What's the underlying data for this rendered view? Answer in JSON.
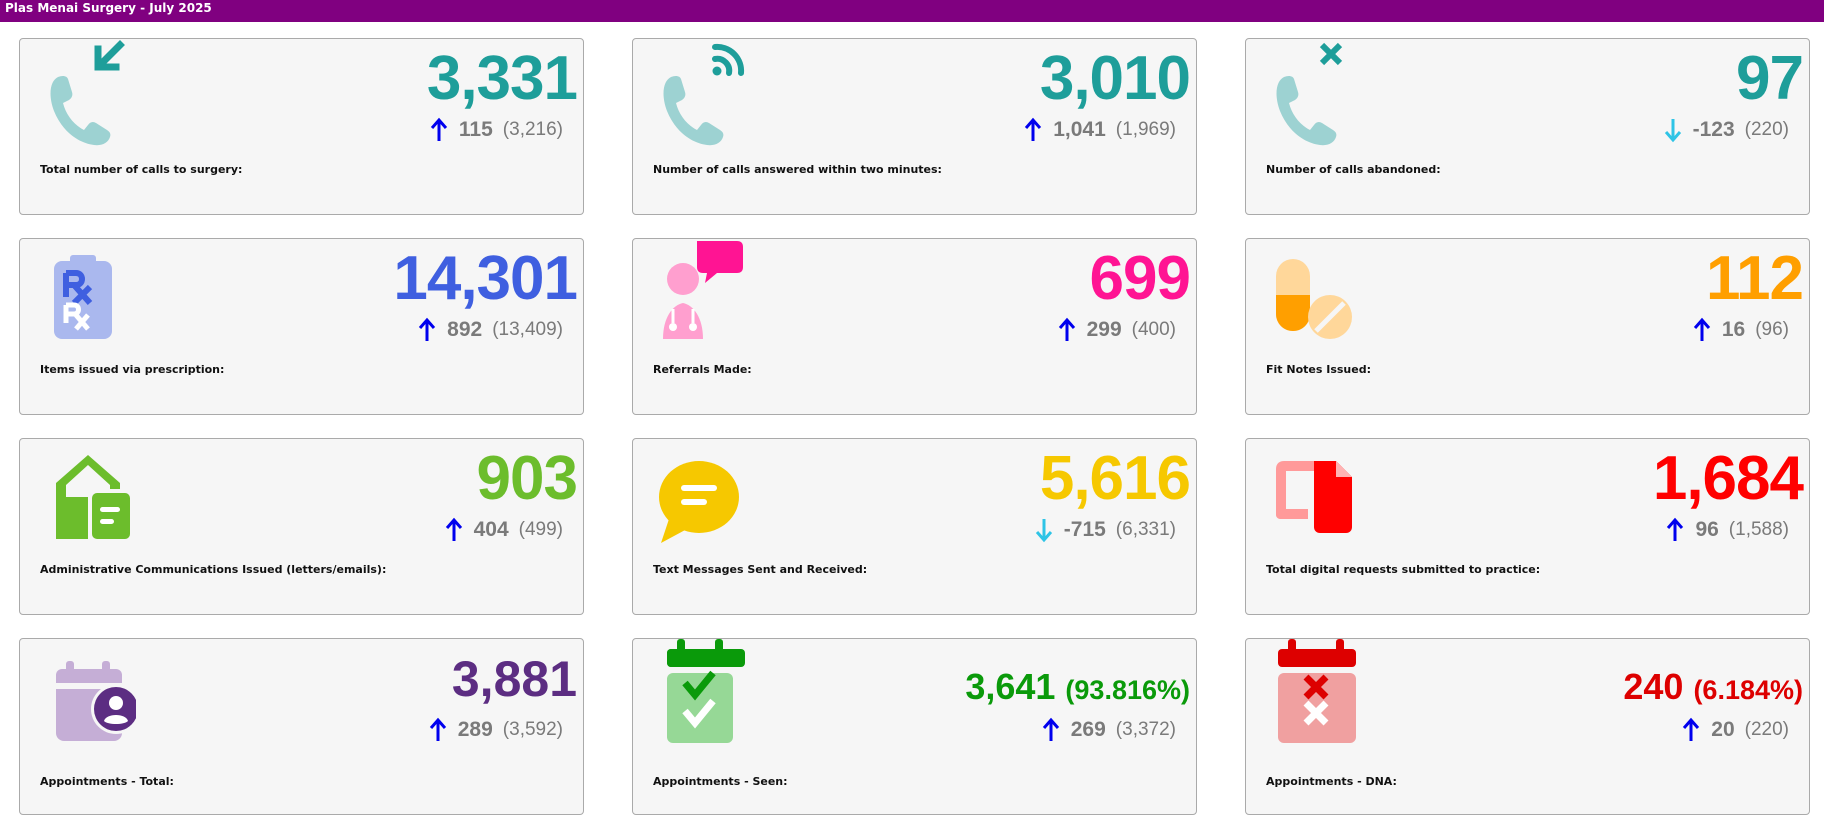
{
  "window": {
    "title": "Plas Menai Surgery - July 2025"
  },
  "colors": {
    "up_arrow": "#0000ee",
    "down_arrow": "#2ec4e6",
    "change_text": "#7a7a7a",
    "title_bar": "#800080"
  },
  "cards": [
    {
      "label": "Total number of calls to surgery:",
      "value": "3,331",
      "change": "115",
      "previous": "(3,216)",
      "direction": "up",
      "color": "#1e9e9a",
      "icon": "incoming-call-icon"
    },
    {
      "label": "Number of calls answered within two minutes:",
      "value": "3,010",
      "change": "1,041",
      "previous": "(1,969)",
      "direction": "up",
      "color": "#1e9e9a",
      "icon": "call-answered-icon"
    },
    {
      "label": "Number of calls abandoned:",
      "value": "97",
      "change": "-123",
      "previous": "(220)",
      "direction": "down",
      "color": "#1e9e9a",
      "icon": "call-abandoned-icon"
    },
    {
      "label": "Items issued via prescription:",
      "value": "14,301",
      "change": "892",
      "previous": "(13,409)",
      "direction": "up",
      "color": "#3f5fe0",
      "icon": "prescription-icon"
    },
    {
      "label": "Referrals Made:",
      "value": "699",
      "change": "299",
      "previous": "(400)",
      "direction": "up",
      "color": "#ff1493",
      "icon": "doctor-referral-icon"
    },
    {
      "label": "Fit Notes Issued:",
      "value": "112",
      "change": "16",
      "previous": "(96)",
      "direction": "up",
      "color": "#ff9f00",
      "icon": "pills-icon"
    },
    {
      "label": "Administrative Communications Issued (letters/emails):",
      "value": "903",
      "change": "404",
      "previous": "(499)",
      "direction": "up",
      "color": "#6cbd2c",
      "icon": "mail-house-icon"
    },
    {
      "label": "Text Messages Sent and Received:",
      "value": "5,616",
      "change": "-715",
      "previous": "(6,331)",
      "direction": "down",
      "color": "#f6c800",
      "icon": "chat-bubble-icon"
    },
    {
      "label": "Total digital requests submitted to practice:",
      "value": "1,684",
      "change": "96",
      "previous": "(1,588)",
      "direction": "up",
      "color": "#ff0000",
      "icon": "digital-request-icon"
    },
    {
      "label": "Appointments - Total:",
      "value": "3,881",
      "value_pct": "",
      "change": "289",
      "previous": "(3,592)",
      "direction": "up",
      "color": "#5c2d82",
      "icon": "calendar-user-icon"
    },
    {
      "label": "Appointments - Seen:",
      "value": "3,641",
      "value_pct": "(93.816%)",
      "change": "269",
      "previous": "(3,372)",
      "direction": "up",
      "color": "#0a9a0a",
      "icon": "calendar-check-icon"
    },
    {
      "label": "Appointments - DNA:",
      "value": "240",
      "value_pct": "(6.184%)",
      "change": "20",
      "previous": "(220)",
      "direction": "up",
      "color": "#dd0000",
      "icon": "calendar-cross-icon"
    }
  ]
}
